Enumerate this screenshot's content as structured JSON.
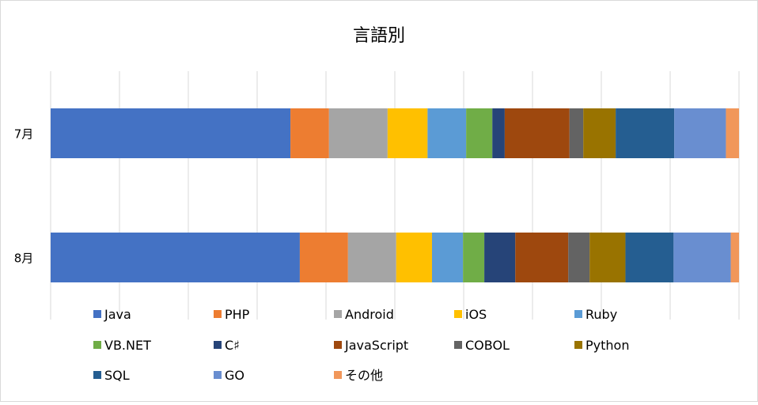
{
  "chart_data": {
    "type": "stacked-bar-100-horizontal",
    "title": "言語別",
    "categories": [
      "7月",
      "8月"
    ],
    "series": [
      {
        "name": "Java",
        "color": "#4472C4",
        "values": [
          34.8,
          36.2
        ]
      },
      {
        "name": "PHP",
        "color": "#ED7D31",
        "values": [
          5.6,
          7.0
        ]
      },
      {
        "name": "Android",
        "color": "#A5A5A5",
        "values": [
          8.5,
          7.0
        ]
      },
      {
        "name": "iOS",
        "color": "#FFC000",
        "values": [
          5.8,
          5.2
        ]
      },
      {
        "name": "Ruby",
        "color": "#5B9BD5",
        "values": [
          5.6,
          4.5
        ]
      },
      {
        "name": "VB.NET",
        "color": "#70AD47",
        "values": [
          3.8,
          3.1
        ]
      },
      {
        "name": "C♯",
        "color": "#264478",
        "values": [
          1.8,
          4.5
        ]
      },
      {
        "name": "JavaScript",
        "color": "#9E480E",
        "values": [
          9.4,
          7.7
        ]
      },
      {
        "name": "COBOL",
        "color": "#636363",
        "values": [
          2.0,
          3.1
        ]
      },
      {
        "name": "Python",
        "color": "#997300",
        "values": [
          4.7,
          5.2
        ]
      },
      {
        "name": "SQL",
        "color": "#255E91",
        "values": [
          8.5,
          7.0
        ]
      },
      {
        "name": "GO",
        "color": "#698ED0",
        "values": [
          7.5,
          8.3
        ]
      },
      {
        "name": "その他",
        "color": "#F1975A",
        "values": [
          1.9,
          1.2
        ]
      }
    ],
    "xlim": [
      0,
      100
    ],
    "grid": true,
    "legend_position": "bottom",
    "legend_rows": [
      [
        "Java",
        "PHP",
        "Android",
        "iOS",
        "Ruby"
      ],
      [
        "VB.NET",
        "C♯",
        "JavaScript",
        "COBOL",
        "Python"
      ],
      [
        "SQL",
        "GO",
        "その他"
      ]
    ]
  }
}
